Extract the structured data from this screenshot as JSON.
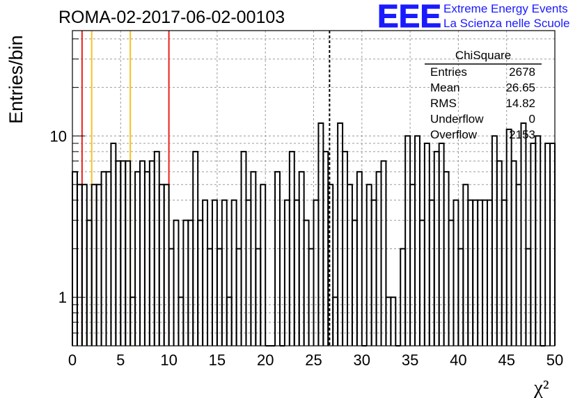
{
  "header": {
    "run_title": "ROMA-02-2017-06-02-00103",
    "logo_text": "EEE",
    "logo_line1": "Extreme Energy Events",
    "logo_line2": "La Scienza nelle Scuole"
  },
  "colors": {
    "red_lines": "#e8201c",
    "yellow_lines": "#f5c21e",
    "logo_blue": "#1a1aff",
    "hist": "#000000"
  },
  "stats_box": {
    "title": "ChiSquare",
    "rows": [
      {
        "label": "Entries",
        "value": "2678"
      },
      {
        "label": "Mean",
        "value": "26.65"
      },
      {
        "label": "RMS",
        "value": "14.82"
      },
      {
        "label": "Underflow",
        "value": "0"
      },
      {
        "label": "Overflow",
        "value": "2153"
      }
    ]
  },
  "chart_data": {
    "type": "bar",
    "title": "ROMA-02-2017-06-02-00103",
    "xlabel": "χ²",
    "ylabel": "Entries/bin",
    "xlim": [
      0,
      50
    ],
    "ylim": [
      0.5,
      45
    ],
    "y_scale": "log",
    "grid": true,
    "x_ticks": [
      0,
      5,
      10,
      15,
      20,
      25,
      30,
      35,
      40,
      45,
      50
    ],
    "y_ticks": [
      {
        "value": 1,
        "label": "1"
      },
      {
        "value": 10,
        "label": "10"
      }
    ],
    "bin_width": 0.5,
    "bin_values": [
      6,
      5,
      5,
      3,
      5,
      5,
      6,
      6,
      9,
      7,
      7,
      7,
      1,
      6,
      7,
      6,
      7,
      8,
      5,
      5,
      2,
      3,
      1,
      3,
      3,
      8,
      3,
      4,
      2,
      4,
      2,
      4,
      1,
      4,
      2,
      8,
      4,
      6,
      2,
      5,
      0,
      0,
      6,
      0,
      4,
      8,
      4,
      6,
      3,
      2,
      4,
      12,
      8,
      5,
      1,
      12,
      8,
      5,
      3,
      6,
      0,
      5,
      4,
      6,
      7,
      1,
      1,
      0,
      2,
      10,
      5,
      10,
      3,
      9,
      4,
      8,
      9,
      6,
      3,
      4,
      2,
      5,
      4,
      4,
      4,
      4,
      4,
      10,
      7,
      4,
      11,
      7,
      5,
      12,
      2,
      9,
      10,
      0,
      9,
      9
    ],
    "vertical_lines": [
      {
        "x": 1,
        "color": "red",
        "style": "solid"
      },
      {
        "x": 2,
        "color": "yellow",
        "style": "solid"
      },
      {
        "x": 6,
        "color": "yellow",
        "style": "solid"
      },
      {
        "x": 10,
        "color": "red",
        "style": "solid"
      },
      {
        "x": 26.65,
        "color": "black",
        "style": "dashed"
      }
    ]
  }
}
